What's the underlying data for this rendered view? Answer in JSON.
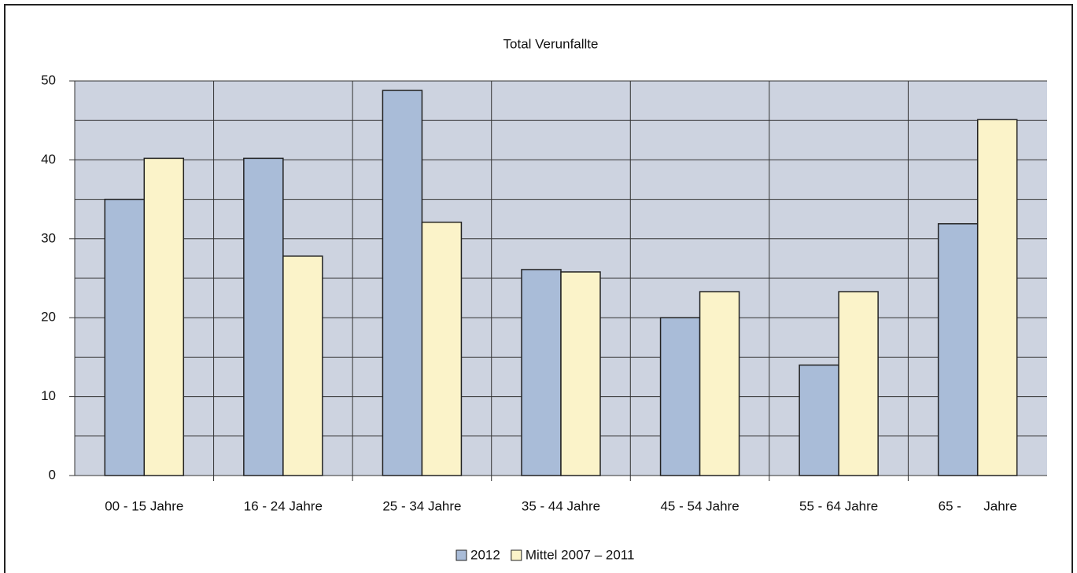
{
  "chart_data": {
    "type": "bar",
    "title": "Total Verunfallte",
    "categories": [
      "00 - 15 Jahre",
      "16 - 24 Jahre",
      "25 - 34 Jahre",
      "35 - 44 Jahre",
      "45 - 54 Jahre",
      "55 - 64 Jahre",
      "65 -      Jahre"
    ],
    "series": [
      {
        "name": "2012",
        "color": "#a9bcd8",
        "values": [
          35,
          40.2,
          48.8,
          26.1,
          20,
          14,
          31.9
        ]
      },
      {
        "name": "Mittel 2007 – 2011",
        "color": "#fbf3c9",
        "values": [
          40.2,
          27.8,
          32.1,
          25.8,
          23.3,
          23.3,
          45.1
        ]
      }
    ],
    "ylim": [
      0,
      50
    ],
    "yticks": [
      0,
      10,
      20,
      30,
      40,
      50
    ],
    "minor_grid": [
      5,
      15,
      25,
      35,
      45
    ],
    "grid": true,
    "legend": "bottom"
  }
}
